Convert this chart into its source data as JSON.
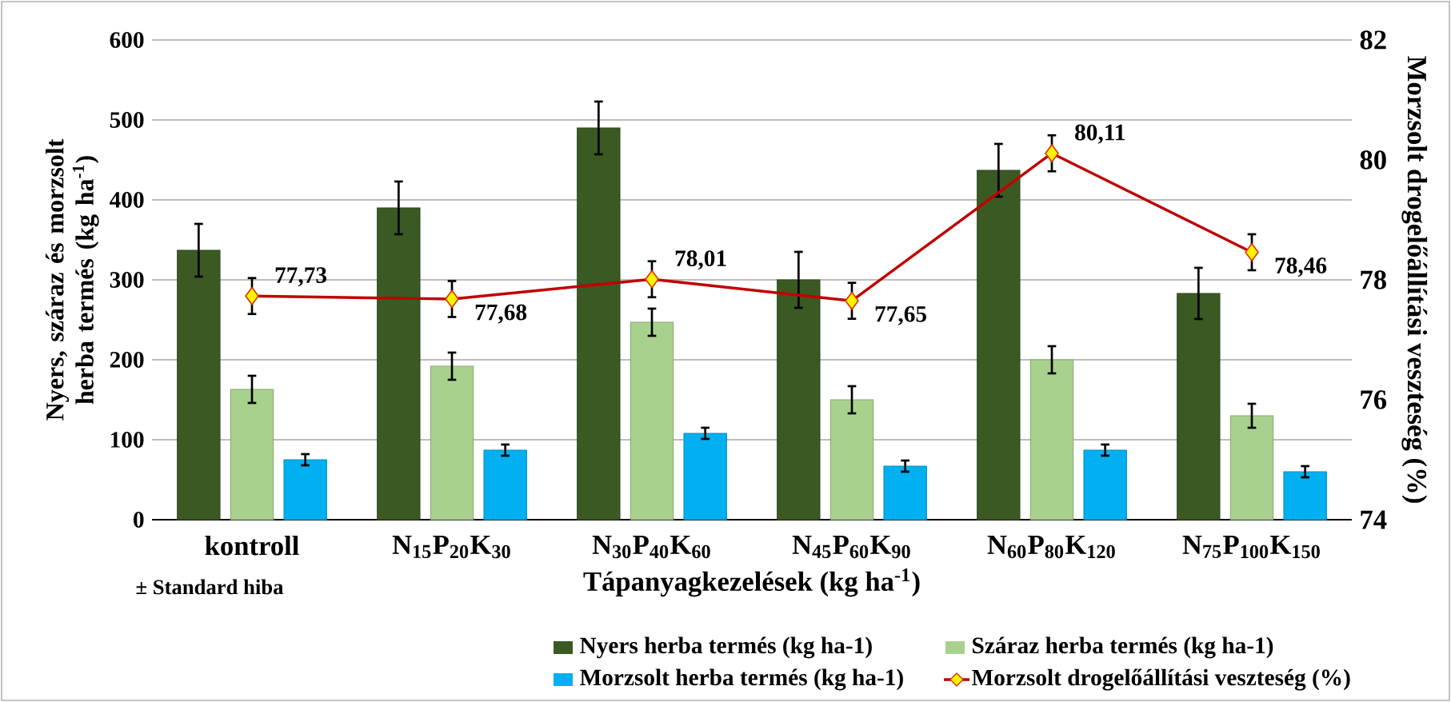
{
  "chart_data": {
    "type": "bar",
    "categories": [
      "kontroll",
      "N$_{15}$P$_{20}$K$_{30}$",
      "N$_{30}$P$_{40}$K$_{60}$",
      "N$_{45}$P$_{60}$K$_{90}$",
      "N$_{60}$P$_{80}$K$_{120}$",
      "N$_{75}$P$_{100}$K$_{150}$"
    ],
    "series": [
      {
        "name": "Nyers herba termés (kg ha-1)",
        "color": "#3b5a23",
        "values": [
          337,
          390,
          490,
          300,
          437,
          283
        ],
        "errors": [
          33,
          33,
          33,
          35,
          33,
          32
        ]
      },
      {
        "name": "Száraz herba termés (kg ha-1)",
        "color": "#a9d18e",
        "values": [
          163,
          192,
          247,
          150,
          200,
          130
        ],
        "errors": [
          17,
          17,
          17,
          17,
          17,
          15
        ]
      },
      {
        "name": "Morzsolt herba termés (kg ha-1)",
        "color": "#00b0f0",
        "values": [
          75,
          87,
          108,
          67,
          87,
          60
        ],
        "errors": [
          7,
          7,
          7,
          7,
          7,
          7
        ]
      },
      {
        "name": "Morzsolt drogelőállítási veszteség (%)",
        "type": "line",
        "axis": "y2",
        "marker": "diamond",
        "color": "#c00000",
        "values": [
          77.73,
          77.68,
          78.01,
          77.65,
          80.11,
          78.46
        ],
        "errors": [
          0.3,
          0.3,
          0.3,
          0.3,
          0.3,
          0.3
        ],
        "value_labels": [
          "77,73",
          "77,68",
          "78,01",
          "77,65",
          "80,11",
          "78,46"
        ]
      }
    ],
    "xlabel": "Tápanyagkezelések (kg ha$^{-1}$)",
    "ylabel": "Nyers, száraz és morzsolt herba termés (kg ha$^{-1}$)",
    "y2label": "Morzsolt drogelőállítási veszteség (%)",
    "ylim": [
      0,
      600
    ],
    "yticks": [
      0,
      100,
      200,
      300,
      400,
      500,
      600
    ],
    "y2lim": [
      74,
      82
    ],
    "y2ticks": [
      74,
      76,
      78,
      80,
      82
    ],
    "grid": "y",
    "legend": "bottom",
    "annotations": [
      "± Standard hiba"
    ]
  }
}
